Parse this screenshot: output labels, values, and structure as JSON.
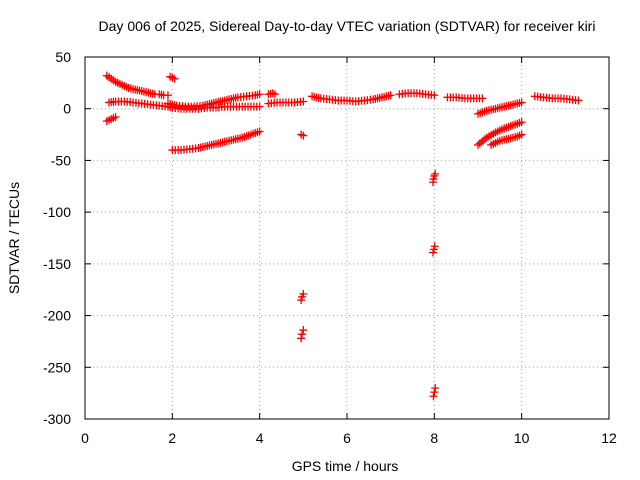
{
  "chart_data": {
    "type": "scatter",
    "title": "Day 006 of 2025, Sidereal Day-to-day VTEC variation (SDTVAR) for receiver kiri",
    "xlabel": "GPS time / hours",
    "ylabel": "SDTVAR / TECUs",
    "xlim": [
      0,
      12
    ],
    "ylim": [
      -300,
      50
    ],
    "xticks": [
      "0",
      "2",
      "4",
      "6",
      "8",
      "10",
      "12"
    ],
    "yticks": [
      "50",
      "0",
      "-50",
      "-100",
      "-150",
      "-200",
      "-250",
      "-300"
    ],
    "grid": true,
    "marker": "plus",
    "color": "#ff0000",
    "series": [
      {
        "x": [
          0.5,
          0.6,
          0.7,
          0.8,
          0.9,
          1.0,
          1.1,
          1.2,
          1.3,
          1.4,
          1.5,
          1.6,
          1.7,
          1.8,
          1.9
        ],
        "y": [
          32,
          29,
          26,
          24,
          22,
          20,
          19,
          18,
          17,
          16,
          15,
          14,
          14,
          13,
          13
        ]
      },
      {
        "x": [
          0.5,
          0.55,
          0.6,
          0.65,
          0.7
        ],
        "y": [
          -12,
          -11,
          -10,
          -9,
          -8
        ]
      },
      {
        "x": [
          0.55,
          0.7,
          0.9,
          1.1,
          1.3,
          1.5,
          1.7,
          1.9,
          2.0
        ],
        "y": [
          6,
          7,
          7,
          6,
          5,
          4,
          3,
          2,
          1
        ]
      },
      {
        "x": [
          1.95,
          2.05
        ],
        "y": [
          31,
          29
        ]
      },
      {
        "x": [
          1.9,
          2.1,
          2.3,
          2.5,
          2.7,
          2.9,
          3.1,
          3.3,
          3.5,
          3.7,
          3.9,
          4.0
        ],
        "y": [
          5,
          3,
          2,
          2,
          3,
          5,
          7,
          9,
          11,
          12,
          13,
          14
        ]
      },
      {
        "x": [
          2.0,
          2.2,
          2.4,
          2.6,
          2.8,
          3.0,
          3.2,
          3.4,
          3.6,
          3.8,
          4.0
        ],
        "y": [
          1,
          0,
          0,
          0,
          1,
          1,
          2,
          2,
          2,
          2,
          2
        ]
      },
      {
        "x": [
          2.0,
          2.2,
          2.4,
          2.6,
          2.8,
          3.0,
          3.2,
          3.4,
          3.6,
          3.8,
          4.0
        ],
        "y": [
          -40,
          -40,
          -39,
          -38,
          -36,
          -34,
          -32,
          -30,
          -28,
          -25,
          -22
        ]
      },
      {
        "x": [
          4.2,
          4.3,
          4.35
        ],
        "y": [
          14,
          15,
          14
        ]
      },
      {
        "x": [
          4.2,
          4.4,
          4.6,
          4.8,
          5.0
        ],
        "y": [
          5,
          6,
          6,
          6,
          7
        ]
      },
      {
        "x": [
          4.95,
          5.0
        ],
        "y": [
          -25,
          -26
        ]
      },
      {
        "x": [
          4.95,
          4.97,
          5.0
        ],
        "y": [
          -185,
          -182,
          -179
        ]
      },
      {
        "x": [
          4.95,
          4.97,
          5.0
        ],
        "y": [
          -222,
          -218,
          -214
        ]
      },
      {
        "x": [
          5.2,
          5.4,
          5.6,
          5.8,
          6.0,
          6.2,
          6.4,
          6.6,
          6.8,
          7.0
        ],
        "y": [
          12,
          10,
          9,
          8,
          8,
          7,
          8,
          9,
          11,
          13
        ]
      },
      {
        "x": [
          7.2,
          7.4,
          7.6,
          7.8,
          8.0
        ],
        "y": [
          14,
          15,
          15,
          14,
          13
        ]
      },
      {
        "x": [
          7.97,
          7.98,
          8.0,
          8.02
        ],
        "y": [
          -71,
          -68,
          -65,
          -63
        ]
      },
      {
        "x": [
          7.97,
          7.99,
          8.01
        ],
        "y": [
          -139,
          -136,
          -133
        ]
      },
      {
        "x": [
          7.98,
          8.0,
          8.02
        ],
        "y": [
          -278,
          -274,
          -270
        ]
      },
      {
        "x": [
          8.3,
          8.5,
          8.7,
          8.9,
          9.1
        ],
        "y": [
          11,
          11,
          10,
          10,
          10
        ]
      },
      {
        "x": [
          9.0,
          9.2,
          9.4,
          9.6,
          9.8,
          10.0
        ],
        "y": [
          -5,
          -2,
          0,
          2,
          4,
          6
        ]
      },
      {
        "x": [
          9.0,
          9.2,
          9.4,
          9.6,
          9.8,
          10.0
        ],
        "y": [
          -35,
          -28,
          -23,
          -19,
          -16,
          -13
        ]
      },
      {
        "x": [
          9.3,
          9.5,
          9.7,
          9.9,
          10.0
        ],
        "y": [
          -35,
          -31,
          -29,
          -27,
          -25
        ]
      },
      {
        "x": [
          10.3,
          10.5,
          10.7,
          10.9,
          11.1,
          11.3
        ],
        "y": [
          12,
          11,
          10,
          10,
          9,
          8
        ]
      }
    ]
  }
}
